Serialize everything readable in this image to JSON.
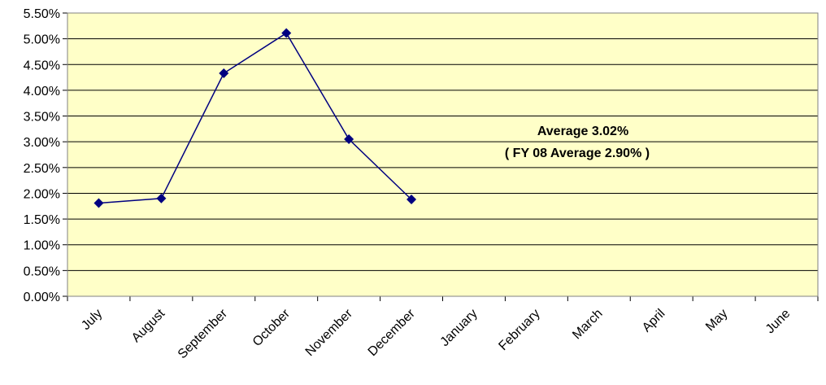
{
  "chart_data": {
    "type": "line",
    "categories": [
      "July",
      "August",
      "September",
      "October",
      "November",
      "December",
      "January",
      "February",
      "March",
      "April",
      "May",
      "June"
    ],
    "series": [
      {
        "values": [
          0.0181,
          0.019,
          0.0433,
          0.0511,
          0.0305,
          0.0188,
          null,
          null,
          null,
          null,
          null,
          null
        ]
      }
    ],
    "ylim": [
      0,
      0.055
    ],
    "yticks": [
      "0.00%",
      "0.50%",
      "1.00%",
      "1.50%",
      "2.00%",
      "2.50%",
      "3.00%",
      "3.50%",
      "4.00%",
      "4.50%",
      "5.00%",
      "5.50%"
    ],
    "grid": true,
    "legend": "none",
    "annotations": [
      "Average 3.02%",
      "( FY 08 Average 2.90% )"
    ],
    "colors": {
      "plot_background": "#FFFFC8",
      "line": "#000080",
      "marker": "#000080",
      "grid": "#000000"
    }
  }
}
